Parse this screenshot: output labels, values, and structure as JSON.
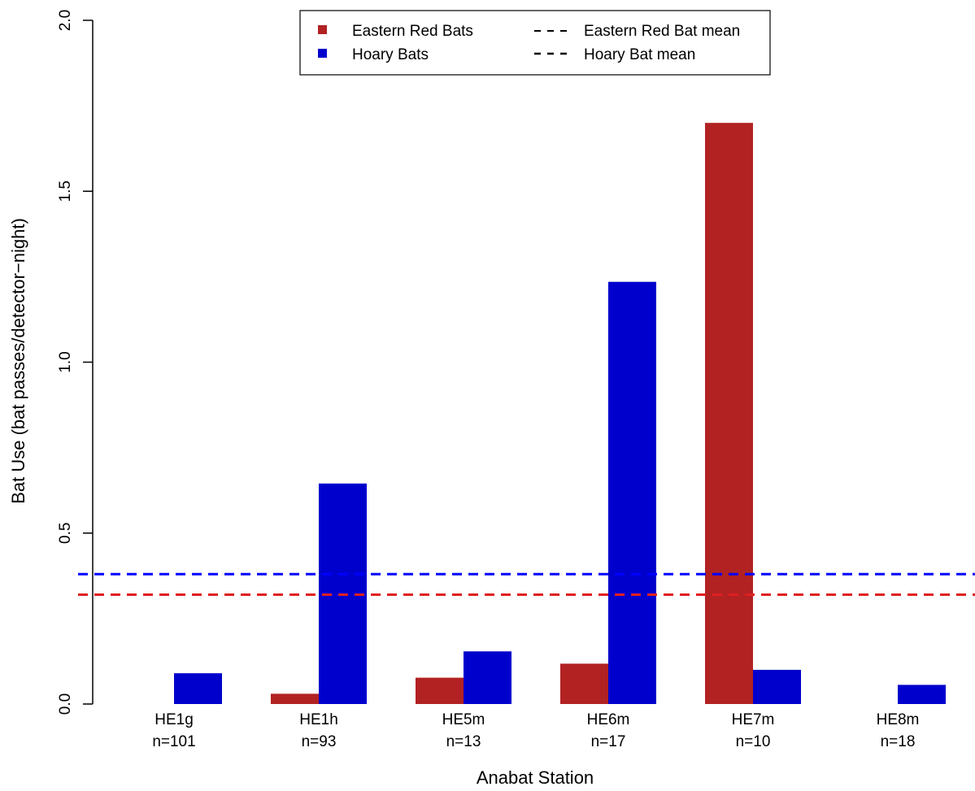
{
  "chart_data": {
    "type": "bar",
    "title": "",
    "xlabel": "Anabat Station",
    "ylabel": "Bat Use (bat passes/detector−night)",
    "categories": [
      "HE1g",
      "HE1h",
      "HE5m",
      "HE6m",
      "HE7m",
      "HE8m"
    ],
    "sample_sizes": [
      "n=101",
      "n=93",
      "n=13",
      "n=17",
      "n=10",
      "n=18"
    ],
    "series": [
      {
        "name": "Eastern Red Bats",
        "color": "#b22222",
        "values": [
          0.0,
          0.03,
          0.077,
          0.118,
          1.7,
          0.0
        ]
      },
      {
        "name": "Hoary Bats",
        "color": "#0000cd",
        "values": [
          0.09,
          0.645,
          0.154,
          1.235,
          0.1,
          0.056
        ]
      }
    ],
    "reference_lines": [
      {
        "name": "Eastern Red Bat mean",
        "value": 0.32,
        "color": "#e02020",
        "style": "dashed"
      },
      {
        "name": "Hoary Bat mean",
        "value": 0.38,
        "color": "#0000ff",
        "style": "dashed"
      }
    ],
    "ylim": [
      0,
      2.0
    ],
    "yticks": [
      0.0,
      0.5,
      1.0,
      1.5,
      2.0
    ],
    "ytick_labels": [
      "0.0",
      "0.5",
      "1.0",
      "1.5",
      "2.0"
    ],
    "grid": false,
    "legend_position": "top-center"
  }
}
